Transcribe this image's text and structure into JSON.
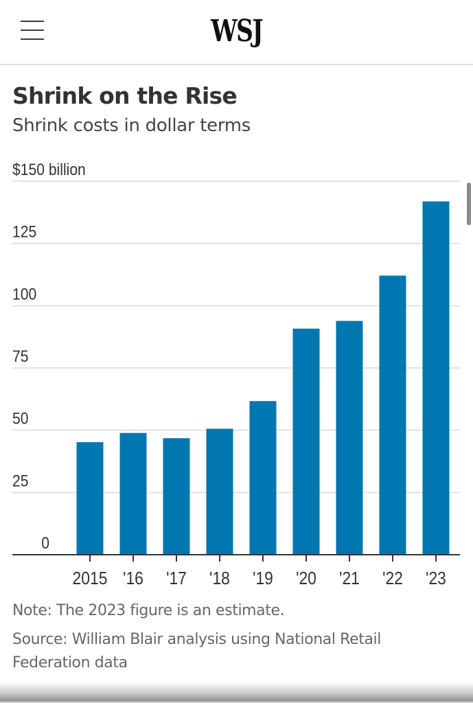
{
  "header": {
    "menu_icon": "hamburger-menu-icon",
    "logo_text": "WSJ"
  },
  "article": {
    "title": "Shrink on the Rise",
    "subtitle": "Shrink costs in dollar terms",
    "note": "Note: The 2023 figure is an estimate.",
    "source": "Source: William Blair analysis using National Retail Federation data"
  },
  "colors": {
    "bar": "#0077b0",
    "gridline": "#e2e2e2",
    "axis": "#333333"
  },
  "chart_data": {
    "type": "bar",
    "title": "Shrink on the Rise",
    "subtitle": "Shrink costs in dollar terms",
    "xlabel": "",
    "ylabel": "$ billion",
    "categories": [
      "2015",
      "'16",
      "'17",
      "'18",
      "'19",
      "'20",
      "'21",
      "'22",
      "'23"
    ],
    "values": [
      45.2,
      48.9,
      46.8,
      50.6,
      61.7,
      90.8,
      93.9,
      112.1,
      141.9
    ],
    "ylim": [
      0,
      150
    ],
    "yticks": [
      0,
      25,
      50,
      75,
      100,
      125,
      150
    ],
    "ytick_labels": [
      "0",
      "25",
      "50",
      "75",
      "100",
      "125",
      "$150 billion"
    ],
    "grid": true,
    "legend": "none"
  }
}
